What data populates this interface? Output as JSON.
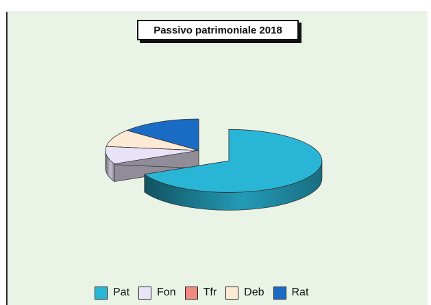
{
  "chart_data": {
    "type": "pie",
    "title": "Passivo patrimoniale 2018",
    "categories": [
      "Pat",
      "Fon",
      "Tfr",
      "Deb",
      "Rat"
    ],
    "values": [
      68,
      9,
      0,
      9,
      14
    ],
    "colors": [
      "#29b6d6",
      "#e8e3f6",
      "#f08a7e",
      "#fde9d4",
      "#1a6bc4"
    ],
    "exploded_slice": "Pat",
    "three_d": true,
    "legend_position": "bottom",
    "grid": false
  }
}
